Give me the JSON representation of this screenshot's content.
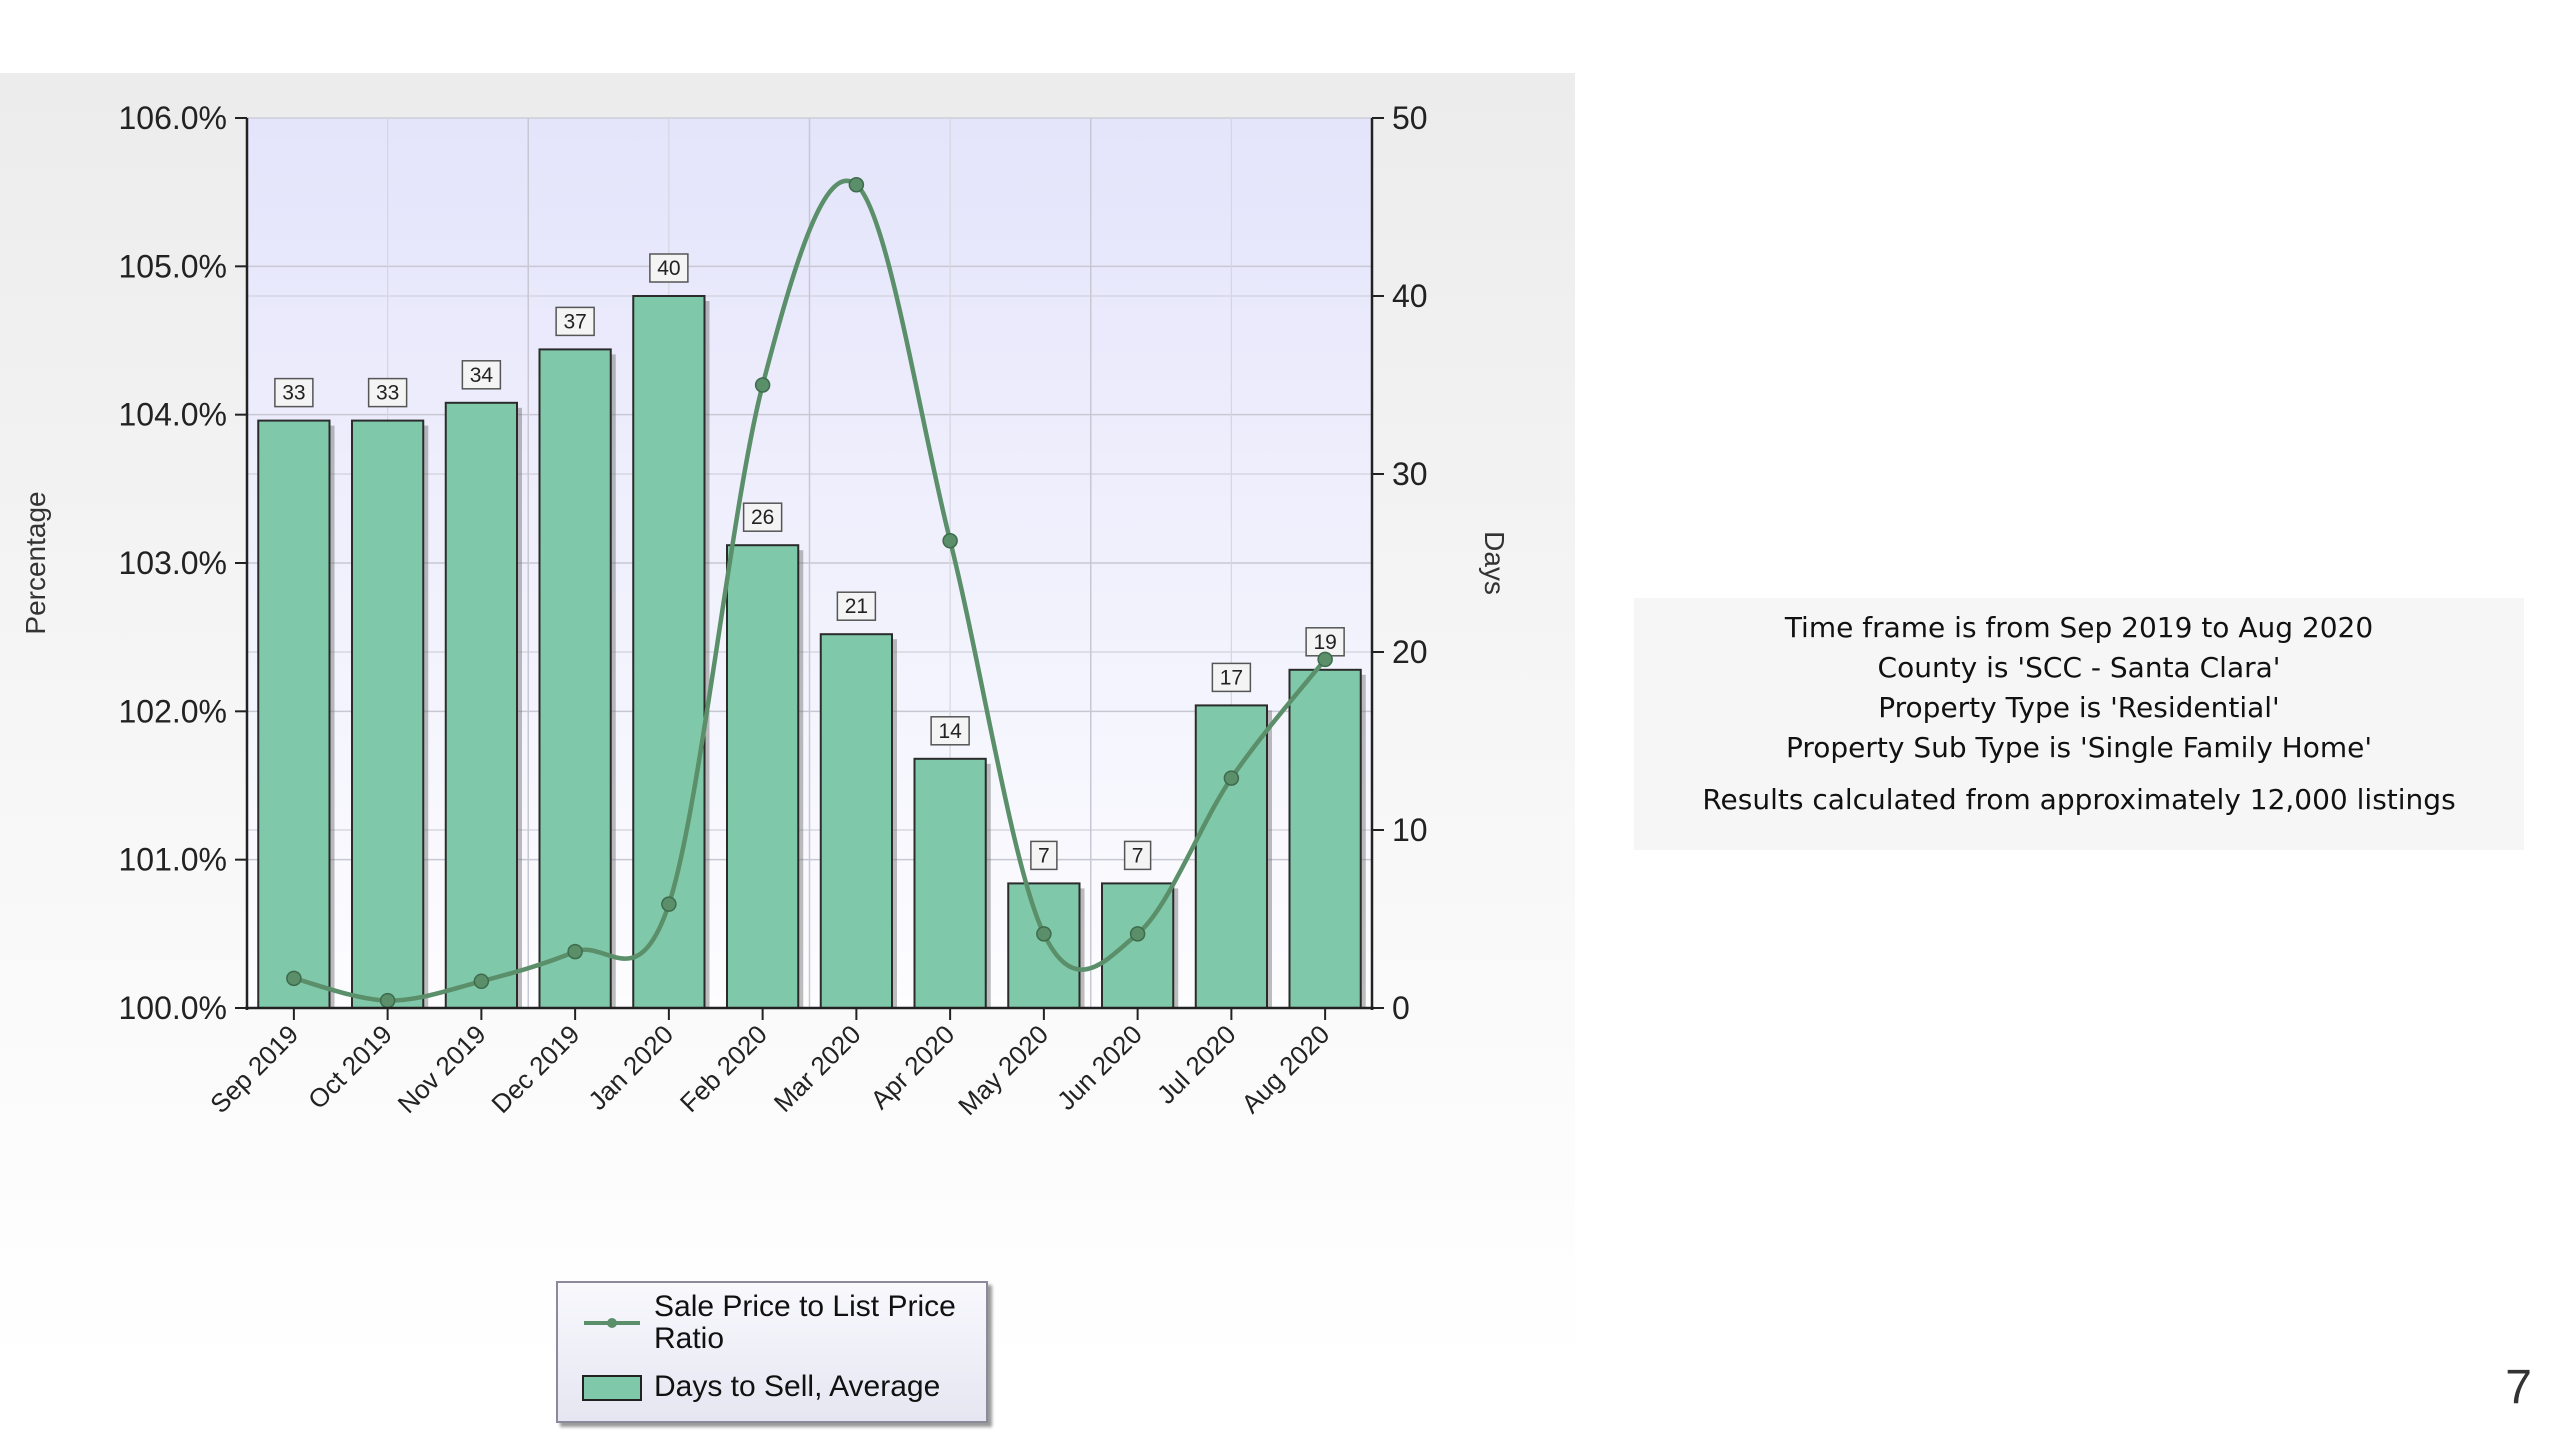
{
  "chart_data": {
    "type": "bar",
    "categories": [
      "Sep 2019",
      "Oct 2019",
      "Nov 2019",
      "Dec 2019",
      "Jan 2020",
      "Feb 2020",
      "Mar 2020",
      "Apr 2020",
      "May 2020",
      "Jun 2020",
      "Jul 2020",
      "Aug 2020"
    ],
    "series": [
      {
        "name": "Days to Sell, Average",
        "type": "bar",
        "axis": "right",
        "color": "#7fc8a9",
        "values": [
          33,
          33,
          34,
          37,
          40,
          26,
          21,
          14,
          7,
          7,
          17,
          19
        ],
        "data_labels": [
          "33",
          "33",
          "34",
          "37",
          "40",
          "26",
          "21",
          "14",
          "7",
          "7",
          "17",
          "19"
        ]
      },
      {
        "name": "Sale Price to List Price Ratio",
        "type": "line",
        "axis": "left",
        "color": "#5a8f6a",
        "values": [
          100.2,
          100.05,
          100.18,
          100.38,
          100.7,
          104.2,
          105.55,
          103.15,
          100.5,
          100.5,
          101.55,
          102.35
        ]
      }
    ],
    "left_axis": {
      "label": "Percentage",
      "ylim": [
        100,
        106
      ],
      "ticks": [
        "100.0%",
        "101.0%",
        "102.0%",
        "103.0%",
        "104.0%",
        "105.0%",
        "106.0%"
      ]
    },
    "right_axis": {
      "label": "Days",
      "ylim": [
        0,
        50
      ],
      "ticks": [
        "0",
        "10",
        "20",
        "30",
        "40",
        "50"
      ]
    },
    "grid": true,
    "legend_position": "bottom"
  },
  "legend": {
    "line_label_1": "Sale Price to List Price",
    "line_label_2": "Ratio",
    "bar_label": "Days to Sell, Average"
  },
  "info": {
    "lines": [
      "Time frame is from Sep 2019 to Aug 2020",
      "County is 'SCC - Santa Clara'",
      "Property Type is 'Residential'",
      "Property Sub Type is 'Single Family Home'",
      "Results calculated from approximately 12,000 listings"
    ]
  },
  "page_number": "7"
}
